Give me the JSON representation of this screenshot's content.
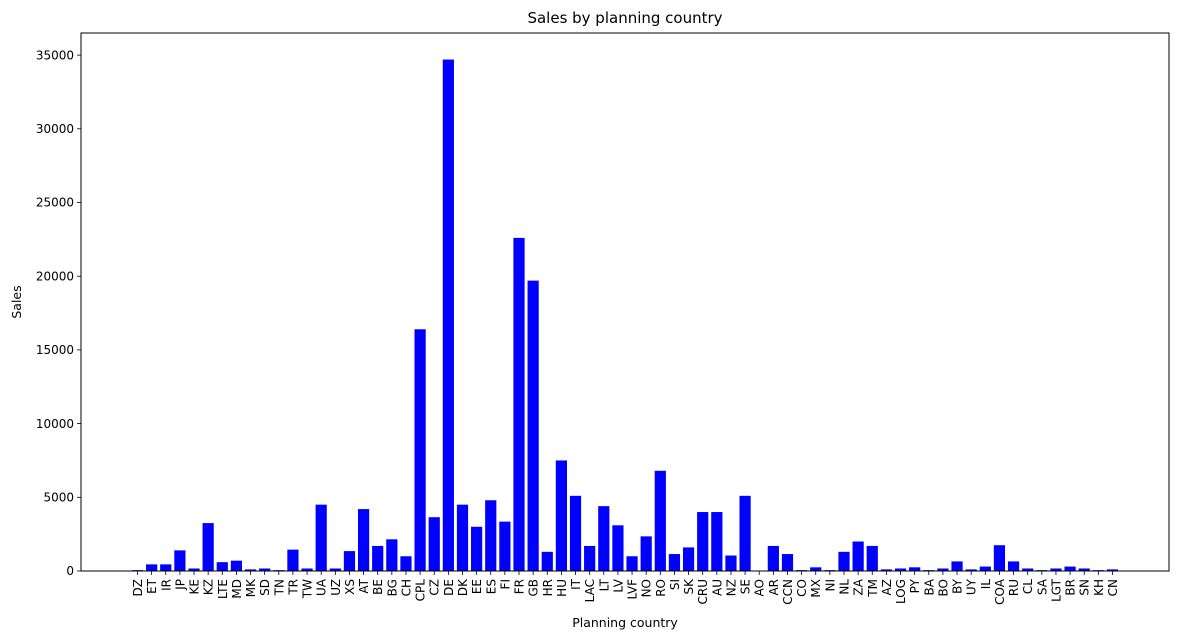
{
  "chart_data": {
    "type": "bar",
    "title": "Sales by planning country",
    "xlabel": "Planning country",
    "ylabel": "Sales",
    "ylim": [
      0,
      36500
    ],
    "yticks": [
      0,
      5000,
      10000,
      15000,
      20000,
      25000,
      30000,
      35000
    ],
    "grid": false,
    "legend": "none",
    "bar_color": "#0000ff",
    "categories": [
      "DZ",
      "ET",
      "IR",
      "JP",
      "KE",
      "KZ",
      "LTE",
      "MD",
      "MK",
      "SD",
      "TN",
      "TR",
      "TW",
      "UA",
      "UZ",
      "XS",
      "AT",
      "BE",
      "BG",
      "CH",
      "CPL",
      "CZ",
      "DE",
      "DK",
      "EE",
      "ES",
      "FI",
      "FR",
      "GB",
      "HR",
      "HU",
      "IT",
      "LAC",
      "LT",
      "LV",
      "LVF",
      "NO",
      "RO",
      "SI",
      "SK",
      "CRU",
      "AU",
      "NZ",
      "SE",
      "AO",
      "AR",
      "CCN",
      "CO",
      "MX",
      "NI",
      "NL",
      "ZA",
      "TM",
      "AZ",
      "LOG",
      "PY",
      "BA",
      "BO",
      "BY",
      "UY",
      "IL",
      "COA",
      "RU",
      "CL",
      "SA",
      "LGT",
      "BR",
      "SN",
      "KH",
      "CN"
    ],
    "values": [
      60,
      450,
      450,
      1400,
      170,
      3250,
      600,
      700,
      110,
      170,
      60,
      1450,
      170,
      4500,
      170,
      1350,
      4200,
      1700,
      2150,
      1000,
      16400,
      3650,
      34700,
      4500,
      3000,
      4800,
      3350,
      22600,
      19700,
      1300,
      7500,
      5100,
      1700,
      4400,
      3100,
      1000,
      2350,
      6800,
      1150,
      1600,
      4000,
      4000,
      1050,
      5100,
      30,
      1700,
      1150,
      60,
      250,
      60,
      1300,
      2000,
      1700,
      110,
      170,
      250,
      60,
      170,
      650,
      110,
      300,
      1750,
      650,
      170,
      60,
      170,
      300,
      170,
      60,
      110
    ]
  }
}
